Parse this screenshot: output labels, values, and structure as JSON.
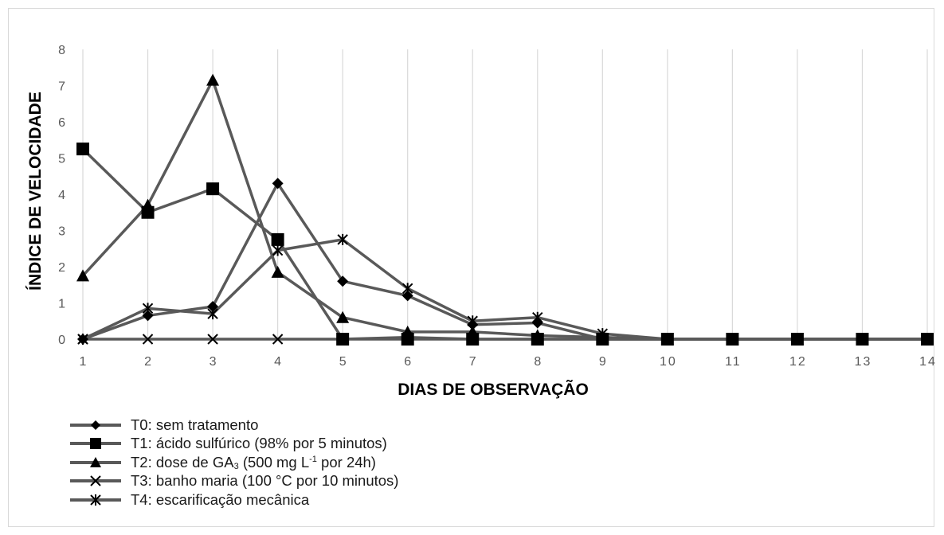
{
  "chart_data": {
    "type": "line",
    "xlabel": "DIAS DE OBSERVAÇÃO",
    "ylabel": "ÍNDICE DE VELOCIDADE",
    "ylim": [
      0,
      8
    ],
    "yticks": [
      "0",
      "1",
      "2",
      "3",
      "4",
      "5",
      "6",
      "7",
      "8"
    ],
    "x": [
      1,
      2,
      3,
      4,
      5,
      6,
      7,
      8,
      9,
      10,
      11,
      12,
      13,
      14
    ],
    "xticks": [
      "1",
      "2",
      "3",
      "4",
      "5",
      "6",
      "7",
      "8",
      "9",
      "10",
      "11",
      "12",
      "13",
      "14"
    ],
    "grid": "vertical",
    "legend_position": "bottom-left",
    "line_color": "#595959",
    "series": [
      {
        "name": "T0: sem tratamento",
        "marker": "diamond",
        "values": [
          0,
          0.65,
          0.9,
          4.3,
          1.6,
          1.2,
          0.4,
          0.45,
          0,
          0,
          0,
          0,
          0,
          0
        ]
      },
      {
        "name": "T1: ácido sulfúrico (98% por 5 minutos)",
        "marker": "square",
        "values": [
          5.25,
          3.5,
          4.15,
          2.75,
          0,
          0,
          0,
          0,
          0,
          0,
          0,
          0,
          0,
          0
        ]
      },
      {
        "name": "T2: dose de GA3 (500 mg L-1 por 24h)",
        "marker": "triangle",
        "values": [
          1.75,
          3.7,
          7.15,
          1.85,
          0.6,
          0.2,
          0.2,
          0.1,
          0.05,
          0,
          0,
          0,
          0,
          0
        ]
      },
      {
        "name": "T3: banho maria (100 °C por 10 minutos)",
        "marker": "x",
        "values": [
          0,
          0,
          0,
          0,
          0,
          0.05,
          0,
          0,
          0,
          0,
          0,
          0,
          0,
          0
        ]
      },
      {
        "name": "T4: escarificação mecânica",
        "marker": "star",
        "values": [
          0,
          0.85,
          0.7,
          2.45,
          2.75,
          1.4,
          0.5,
          0.6,
          0.15,
          0,
          0,
          0,
          0,
          0
        ]
      }
    ],
    "legend": {
      "t0": "T0: sem tratamento",
      "t1": "T1: ácido sulfúrico (98% por 5 minutos)",
      "t2_prefix": "T2: dose de GA",
      "t2_sub": "3",
      "t2_mid": " (500 mg L",
      "t2_sup": "-1",
      "t2_suffix": " por 24h)",
      "t3": "T3: banho maria (100 °C por 10 minutos)",
      "t4": "T4: escarificação mecânica"
    }
  }
}
